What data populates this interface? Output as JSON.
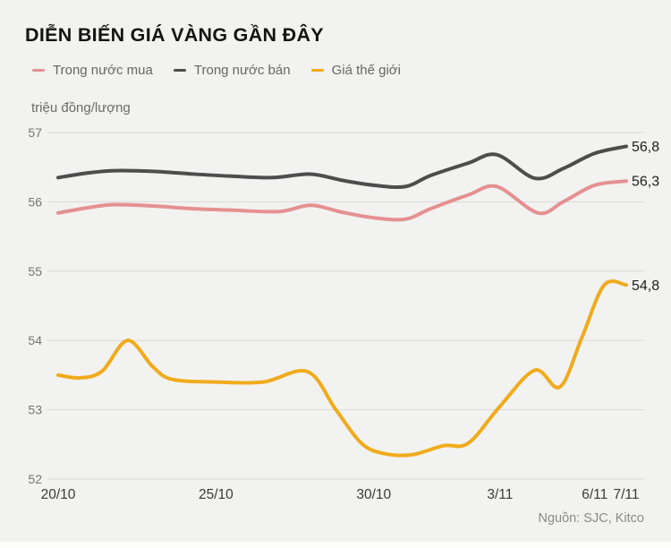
{
  "title": "DIỄN BIẾN GIÁ VÀNG GẦN ĐÂY",
  "unit_label": "triệu đồng/lượng",
  "source": "Nguồn: SJC, Kitco",
  "colors": {
    "background": "#f2f2f0",
    "gridline": "#d9d9d6",
    "y_tick_text": "#757575",
    "x_tick_text": "#3a3a3a",
    "end_label_text": "#1d1d1d",
    "title_text": "#141414",
    "legend_text": "#666666",
    "source_text": "#8a8a8a"
  },
  "chart_data": {
    "type": "line",
    "title": "DIỄN BIẾN GIÁ VÀNG GẦN ĐÂY",
    "ylabel": "triệu đồng/lượng",
    "xlabel": "",
    "grid": "horizontal",
    "legend_position": "top-left",
    "x_unit": "days-since-20/10",
    "x_range": [
      0,
      18
    ],
    "y_range": [
      52,
      57
    ],
    "y_ticks": [
      57,
      56,
      55,
      54,
      53,
      52
    ],
    "x_ticks": [
      {
        "pos": 0,
        "label": "20/10"
      },
      {
        "pos": 5,
        "label": "25/10"
      },
      {
        "pos": 10,
        "label": "30/10"
      },
      {
        "pos": 14,
        "label": "3/11"
      },
      {
        "pos": 17,
        "label": "6/11"
      },
      {
        "pos": 18,
        "label": "7/11"
      }
    ],
    "series": [
      {
        "name": "Trong nước mua",
        "color": "#e59090",
        "end_label": "56,3",
        "end_value": 56.3,
        "points": [
          [
            0,
            55.84
          ],
          [
            1,
            55.92
          ],
          [
            1.8,
            55.96
          ],
          [
            3,
            55.94
          ],
          [
            4.3,
            55.9
          ],
          [
            5.5,
            55.88
          ],
          [
            7,
            55.86
          ],
          [
            8,
            55.95
          ],
          [
            9,
            55.85
          ],
          [
            10,
            55.77
          ],
          [
            11,
            55.75
          ],
          [
            11.8,
            55.9
          ],
          [
            13,
            56.1
          ],
          [
            13.9,
            56.22
          ],
          [
            15.2,
            55.84
          ],
          [
            16,
            56.0
          ],
          [
            17,
            56.24
          ],
          [
            18,
            56.3
          ]
        ]
      },
      {
        "name": "Trong nước bán",
        "color": "#4d4d4d",
        "end_label": "56,8",
        "end_value": 56.8,
        "points": [
          [
            0,
            56.35
          ],
          [
            1,
            56.42
          ],
          [
            1.8,
            56.45
          ],
          [
            3,
            56.44
          ],
          [
            4.3,
            56.4
          ],
          [
            5.5,
            56.37
          ],
          [
            6.8,
            56.35
          ],
          [
            8,
            56.4
          ],
          [
            9,
            56.31
          ],
          [
            10,
            56.24
          ],
          [
            11,
            56.22
          ],
          [
            11.8,
            56.38
          ],
          [
            13,
            56.56
          ],
          [
            13.9,
            56.68
          ],
          [
            15.1,
            56.34
          ],
          [
            16,
            56.48
          ],
          [
            17,
            56.7
          ],
          [
            18,
            56.8
          ]
        ]
      },
      {
        "name": "Giá thế giới",
        "color": "#f0ab1c",
        "end_label": "54,8",
        "end_value": 54.8,
        "points": [
          [
            0,
            53.5
          ],
          [
            0.7,
            53.46
          ],
          [
            1.4,
            53.56
          ],
          [
            2.2,
            54.0
          ],
          [
            3,
            53.62
          ],
          [
            3.6,
            53.44
          ],
          [
            5,
            53.4
          ],
          [
            6.5,
            53.4
          ],
          [
            7.9,
            53.55
          ],
          [
            8.8,
            53.0
          ],
          [
            9.6,
            52.52
          ],
          [
            10.3,
            52.37
          ],
          [
            11.2,
            52.35
          ],
          [
            12.2,
            52.48
          ],
          [
            13,
            52.52
          ],
          [
            14,
            53.05
          ],
          [
            15.1,
            53.57
          ],
          [
            15.9,
            53.33
          ],
          [
            16.6,
            54.05
          ],
          [
            17.3,
            54.8
          ],
          [
            18,
            54.8
          ]
        ]
      }
    ]
  }
}
